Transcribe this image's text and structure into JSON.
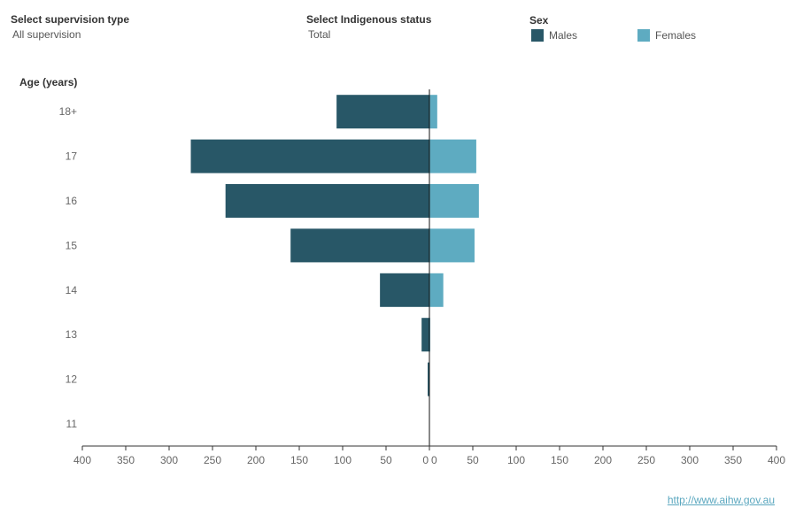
{
  "filters": {
    "supervision": {
      "label": "Select supervision type",
      "value": "All supervision"
    },
    "indigenous": {
      "label": "Select Indigenous status",
      "value": "Total"
    }
  },
  "legend": {
    "title": "Sex",
    "items": [
      {
        "label": "Males",
        "color": "#285767"
      },
      {
        "label": "Females",
        "color": "#5eabc1"
      }
    ]
  },
  "source_link": "http://www.aihw.gov.au",
  "chart_data": {
    "type": "bar",
    "orientation": "horizontal-butterfly",
    "ylabel": "Age (years)",
    "categories": [
      "18+",
      "17",
      "16",
      "15",
      "14",
      "13",
      "12",
      "11"
    ],
    "series": [
      {
        "name": "Males",
        "side": "left",
        "color": "#285767",
        "values": [
          107,
          275,
          235,
          160,
          57,
          9,
          2,
          0
        ]
      },
      {
        "name": "Females",
        "side": "right",
        "color": "#5eabc1",
        "values": [
          9,
          54,
          57,
          52,
          16,
          1,
          0,
          0
        ]
      }
    ],
    "xlim": [
      0,
      400
    ],
    "xticks": [
      0,
      50,
      100,
      150,
      200,
      250,
      300,
      350,
      400
    ],
    "grid": false
  }
}
